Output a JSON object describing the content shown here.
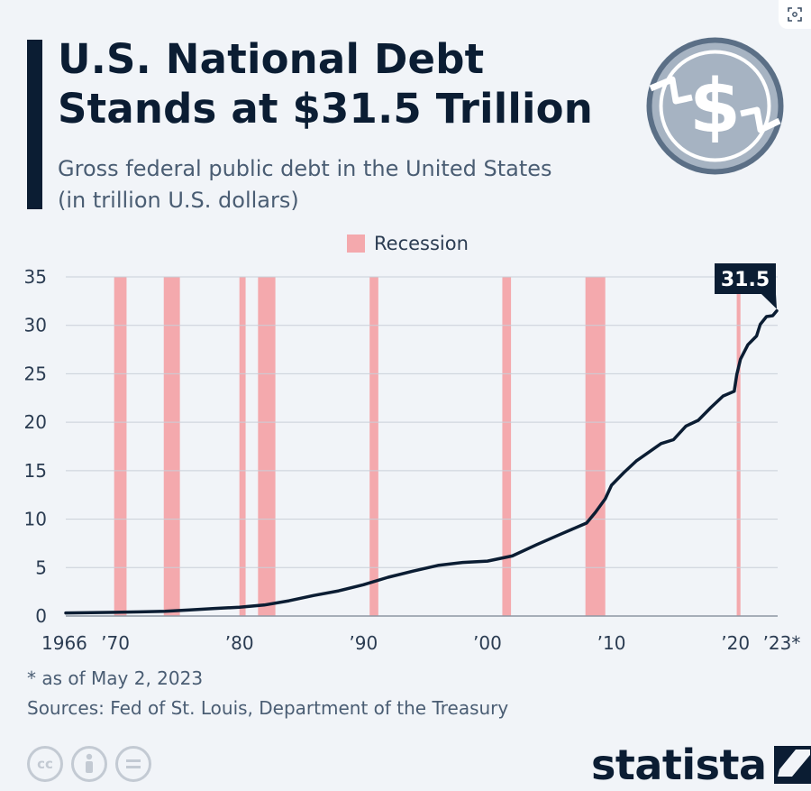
{
  "header": {
    "title_line1": "U.S. National Debt",
    "title_line2": "Stands at $31.5 Trillion",
    "subtitle_line1": "Gross federal public debt in the United States",
    "subtitle_line2": "(in trillion U.S. dollars)"
  },
  "legend": {
    "label": "Recession"
  },
  "callout": {
    "label": "31.5"
  },
  "footer": {
    "footnote": "* as of May 2, 2023",
    "sources": "Sources: Fed of St. Louis, Department of the Treasury",
    "brand": "statista",
    "license_icons": [
      "cc-icon",
      "attribution-icon",
      "no-derivatives-icon"
    ]
  },
  "colors": {
    "line": "#0b1d33",
    "recession": "#f4a9ad",
    "grid": "#c9cfd8",
    "background": "#f1f4f8"
  },
  "chart_data": {
    "type": "line",
    "title": "U.S. National Debt Stands at $31.5 Trillion",
    "subtitle": "Gross federal public debt in the United States (in trillion U.S. dollars)",
    "xlim": [
      1966,
      2023.4
    ],
    "ylim": [
      0,
      35
    ],
    "yticks": [
      0,
      5,
      10,
      15,
      20,
      25,
      30,
      35
    ],
    "xticks": [
      {
        "value": 1966,
        "label": "1966"
      },
      {
        "value": 1970,
        "label": "’70"
      },
      {
        "value": 1980,
        "label": "’80"
      },
      {
        "value": 1990,
        "label": "’90"
      },
      {
        "value": 2000,
        "label": "’00"
      },
      {
        "value": 2010,
        "label": "’10"
      },
      {
        "value": 2020,
        "label": "’20"
      },
      {
        "value": 2023,
        "label": "’23*"
      }
    ],
    "grid": true,
    "legend_position": "top-center",
    "recessions": [
      [
        1969.9,
        1970.9
      ],
      [
        1973.9,
        1975.2
      ],
      [
        1980.0,
        1980.5
      ],
      [
        1981.5,
        1982.9
      ],
      [
        1990.5,
        1991.2
      ],
      [
        2001.2,
        2001.9
      ],
      [
        2007.9,
        2009.5
      ],
      [
        2020.1,
        2020.4
      ]
    ],
    "series": [
      {
        "x": [
          1966,
          1968,
          1970,
          1972,
          1974,
          1976,
          1978,
          1980,
          1982,
          1984,
          1986,
          1988,
          1990,
          1992,
          1994,
          1996,
          1998,
          2000,
          2002,
          2004,
          2006,
          2008,
          2008.7,
          2009.5,
          2010,
          2011,
          2012,
          2013,
          2014,
          2015,
          2016,
          2017,
          2018,
          2019,
          2019.9,
          2020.1,
          2020.4,
          2021,
          2021.7,
          2022,
          2022.5,
          2023,
          2023.33
        ],
        "y": [
          0.32,
          0.35,
          0.38,
          0.43,
          0.48,
          0.62,
          0.78,
          0.9,
          1.14,
          1.57,
          2.12,
          2.6,
          3.23,
          4.0,
          4.64,
          5.22,
          5.53,
          5.67,
          6.2,
          7.38,
          8.5,
          9.6,
          10.7,
          12.1,
          13.5,
          14.8,
          16.0,
          16.9,
          17.8,
          18.2,
          19.6,
          20.2,
          21.5,
          22.7,
          23.2,
          24.9,
          26.5,
          28.0,
          28.9,
          30.1,
          30.9,
          31.0,
          31.5
        ]
      }
    ],
    "last_value_label": "31.5"
  }
}
